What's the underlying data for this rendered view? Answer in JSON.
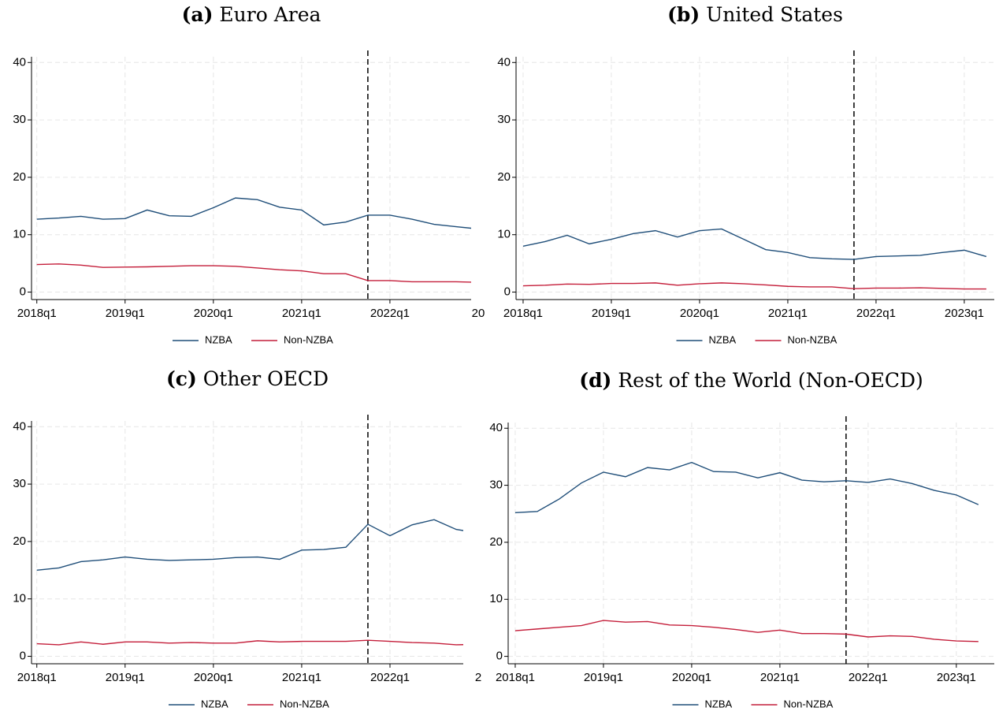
{
  "chart_data": [
    {
      "type": "line",
      "label": "(a)",
      "title": "Euro Area",
      "x": [
        2018,
        2018.25,
        2018.5,
        2018.75,
        2019,
        2019.25,
        2019.5,
        2019.75,
        2020,
        2020.25,
        2020.5,
        2020.75,
        2021,
        2021.25,
        2021.5,
        2021.75,
        2022,
        2022.25,
        2022.5,
        2022.75,
        2023
      ],
      "series": [
        {
          "name": "NZBA",
          "color": "#1f4e79",
          "values": [
            12.7,
            12.9,
            13.2,
            12.7,
            12.8,
            14.3,
            13.3,
            13.2,
            14.7,
            16.4,
            16.1,
            14.8,
            14.3,
            11.7,
            12.2,
            13.4,
            13.4,
            12.7,
            11.8,
            11.4,
            11.0
          ]
        },
        {
          "name": "Non-NZBA",
          "color": "#c41e3a",
          "values": [
            4.8,
            4.9,
            4.7,
            4.3,
            4.35,
            4.4,
            4.5,
            4.6,
            4.6,
            4.5,
            4.2,
            3.9,
            3.7,
            3.2,
            3.2,
            2.0,
            2.0,
            1.8,
            1.8,
            1.8,
            1.7
          ]
        }
      ],
      "xlim": [
        2017.94,
        2022.92
      ],
      "ylim": [
        -1.3,
        41
      ],
      "xticks": [
        {
          "value": 2018,
          "label": "2018q1"
        },
        {
          "value": 2019,
          "label": "2019q1"
        },
        {
          "value": 2020,
          "label": "2020q1"
        },
        {
          "value": 2021,
          "label": "2021q1"
        },
        {
          "value": 2022,
          "label": "2022q1"
        },
        {
          "value": 2023,
          "label": "20"
        }
      ],
      "yticks": [
        0,
        10,
        20,
        30,
        40
      ],
      "vline": 2021.75,
      "grid": true
    },
    {
      "type": "line",
      "label": "(b)",
      "title": "United States",
      "x": [
        2018,
        2018.25,
        2018.5,
        2018.75,
        2019,
        2019.25,
        2019.5,
        2019.75,
        2020,
        2020.25,
        2020.5,
        2020.75,
        2021,
        2021.25,
        2021.5,
        2021.75,
        2022,
        2022.25,
        2022.5,
        2022.75,
        2023,
        2023.25
      ],
      "series": [
        {
          "name": "NZBA",
          "color": "#1f4e79",
          "values": [
            8.0,
            8.8,
            9.9,
            8.4,
            9.2,
            10.2,
            10.7,
            9.6,
            10.7,
            11.0,
            9.2,
            7.4,
            6.9,
            6.0,
            5.8,
            5.7,
            6.2,
            6.3,
            6.4,
            6.9,
            7.3,
            6.2
          ]
        },
        {
          "name": "Non-NZBA",
          "color": "#c41e3a",
          "values": [
            1.1,
            1.2,
            1.4,
            1.35,
            1.5,
            1.5,
            1.6,
            1.2,
            1.45,
            1.6,
            1.45,
            1.25,
            1.0,
            0.9,
            0.9,
            0.6,
            0.7,
            0.7,
            0.75,
            0.65,
            0.55,
            0.55
          ]
        }
      ],
      "xlim": [
        2017.92,
        2023.34
      ],
      "ylim": [
        -1.3,
        41
      ],
      "xticks": [
        {
          "value": 2018,
          "label": "2018q1"
        },
        {
          "value": 2019,
          "label": "2019q1"
        },
        {
          "value": 2020,
          "label": "2020q1"
        },
        {
          "value": 2021,
          "label": "2021q1"
        },
        {
          "value": 2022,
          "label": "2022q1"
        },
        {
          "value": 2023,
          "label": "2023q1"
        }
      ],
      "yticks": [
        0,
        10,
        20,
        30,
        40
      ],
      "vline": 2021.75,
      "grid": true
    },
    {
      "type": "line",
      "label": "(c)",
      "title": "Other OECD",
      "x": [
        2018,
        2018.25,
        2018.5,
        2018.75,
        2019,
        2019.25,
        2019.5,
        2019.75,
        2020,
        2020.25,
        2020.5,
        2020.75,
        2021,
        2021.25,
        2021.5,
        2021.75,
        2022,
        2022.25,
        2022.5,
        2022.75,
        2023
      ],
      "series": [
        {
          "name": "NZBA",
          "color": "#1f4e79",
          "values": [
            15.0,
            15.4,
            16.5,
            16.8,
            17.3,
            16.9,
            16.7,
            16.8,
            16.9,
            17.2,
            17.3,
            16.9,
            18.5,
            18.6,
            19.0,
            23.0,
            21.0,
            22.9,
            23.8,
            22.1,
            21.5
          ]
        },
        {
          "name": "Non-NZBA",
          "color": "#c41e3a",
          "values": [
            2.2,
            2.0,
            2.5,
            2.1,
            2.5,
            2.5,
            2.3,
            2.4,
            2.3,
            2.3,
            2.7,
            2.5,
            2.6,
            2.6,
            2.6,
            2.8,
            2.6,
            2.4,
            2.3,
            2.0,
            2.1
          ]
        }
      ],
      "xlim": [
        2017.94,
        2022.83
      ],
      "ylim": [
        -1.3,
        41
      ],
      "xticks": [
        {
          "value": 2018,
          "label": "2018q1"
        },
        {
          "value": 2019,
          "label": "2019q1"
        },
        {
          "value": 2020,
          "label": "2020q1"
        },
        {
          "value": 2021,
          "label": "2021q1"
        },
        {
          "value": 2022,
          "label": "2022q1"
        },
        {
          "value": 2023,
          "label": "2"
        }
      ],
      "yticks": [
        0,
        10,
        20,
        30,
        40
      ],
      "vline": 2021.75,
      "grid": true
    },
    {
      "type": "line",
      "label": "(d)",
      "title": "Rest of the World (Non-OECD)",
      "x": [
        2018,
        2018.25,
        2018.5,
        2018.75,
        2019,
        2019.25,
        2019.5,
        2019.75,
        2020,
        2020.25,
        2020.5,
        2020.75,
        2021,
        2021.25,
        2021.5,
        2021.75,
        2022,
        2022.25,
        2022.5,
        2022.75,
        2023,
        2023.25
      ],
      "series": [
        {
          "name": "NZBA",
          "color": "#1f4e79",
          "values": [
            25.2,
            25.4,
            27.6,
            30.4,
            32.3,
            31.5,
            33.1,
            32.7,
            34.0,
            32.4,
            32.3,
            31.3,
            32.2,
            30.9,
            30.6,
            30.8,
            30.5,
            31.1,
            30.3,
            29.1,
            28.3,
            26.6
          ]
        },
        {
          "name": "Non-NZBA",
          "color": "#c41e3a",
          "values": [
            4.5,
            4.8,
            5.1,
            5.4,
            6.3,
            6.0,
            6.1,
            5.5,
            5.4,
            5.1,
            4.7,
            4.2,
            4.6,
            4.0,
            4.0,
            3.9,
            3.4,
            3.6,
            3.5,
            3.0,
            2.7,
            2.6
          ]
        }
      ],
      "xlim": [
        2017.92,
        2023.43
      ],
      "ylim": [
        -1.3,
        41
      ],
      "xticks": [
        {
          "value": 2018,
          "label": "2018q1"
        },
        {
          "value": 2019,
          "label": "2019q1"
        },
        {
          "value": 2020,
          "label": "2020q1"
        },
        {
          "value": 2021,
          "label": "2021q1"
        },
        {
          "value": 2022,
          "label": "2022q1"
        },
        {
          "value": 2023,
          "label": "2023q1"
        }
      ],
      "yticks": [
        0,
        10,
        20,
        30,
        40
      ],
      "vline": 2021.75,
      "grid": true
    }
  ]
}
